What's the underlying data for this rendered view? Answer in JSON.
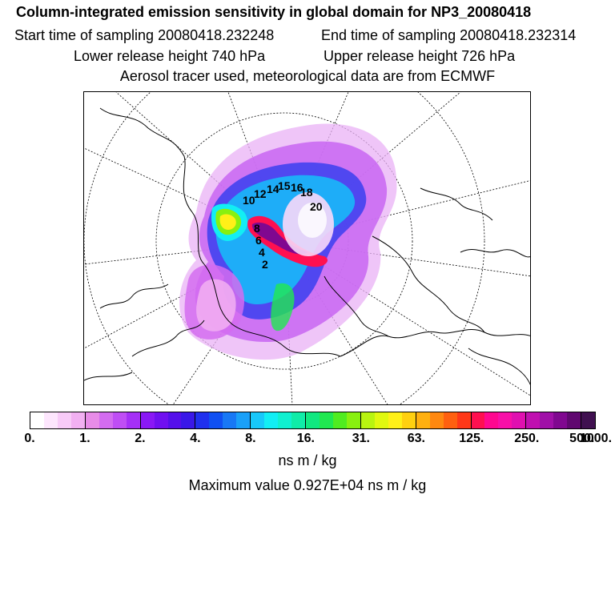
{
  "title": "Column-integrated emission sensitivity in global domain for NP3_20080418",
  "sampling": {
    "start": "Start time of sampling 20080418.232248",
    "end": "End time of sampling 20080418.232314"
  },
  "release": {
    "lower": "Lower release height  740 hPa",
    "upper": "Upper release height  726 hPa"
  },
  "tracer_info": "Aerosol tracer used, meteorological data are from ECMWF",
  "map": {
    "projection": "polar stereographic (North Pole)",
    "day_labels": [
      "10",
      "12",
      "14",
      "15",
      "16",
      "18",
      "20",
      "8",
      "6",
      "4",
      "2"
    ]
  },
  "legend": {
    "colors": [
      "#ffffff",
      "#fde6fd",
      "#f8cbf8",
      "#f2b0f2",
      "#e88ce8",
      "#d36cf0",
      "#bf4ef5",
      "#a530f7",
      "#8a18f5",
      "#7010f0",
      "#5510ea",
      "#3a18e8",
      "#2030ee",
      "#1050f2",
      "#1878f5",
      "#1aa0f8",
      "#18c8fa",
      "#12eef4",
      "#10f0d0",
      "#10eca8",
      "#10e880",
      "#20e850",
      "#50ec20",
      "#88f010",
      "#b8f410",
      "#e0f810",
      "#fff018",
      "#ffd010",
      "#ffb010",
      "#ff8810",
      "#ff6010",
      "#ff3818",
      "#ff1050",
      "#ff0890",
      "#f810a8",
      "#e010b0",
      "#c010b0",
      "#a010a8",
      "#800890",
      "#600870",
      "#401050"
    ],
    "tick_labels": [
      "0.",
      "1.",
      "2.",
      "4.",
      "8.",
      "16.",
      "31.",
      "63.",
      "125.",
      "250.",
      "500.",
      "1000."
    ]
  },
  "units": "ns m / kg",
  "maximum": "Maximum value  0.927E+04 ns m / kg"
}
